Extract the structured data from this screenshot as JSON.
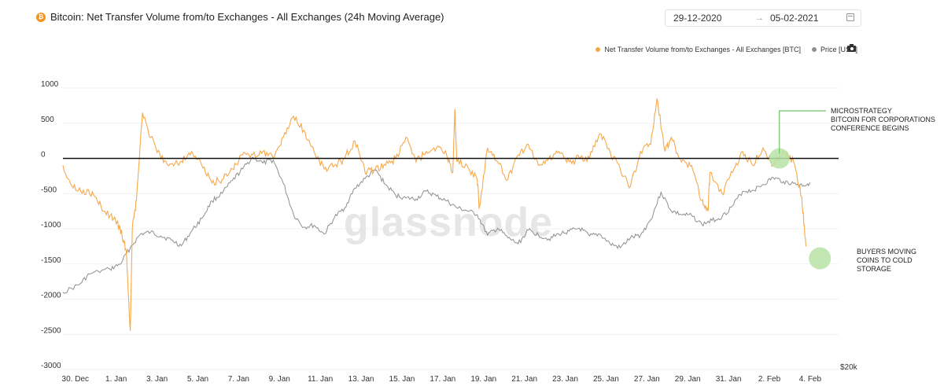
{
  "header": {
    "icon_glyph": "₿",
    "title": "Bitcoin: Net Transfer Volume from/to Exchanges - All Exchanges (24h Moving Average)"
  },
  "date_range": {
    "start": "29-12-2020",
    "arrow": "→",
    "end": "05-02-2021",
    "icon": "calendar-icon"
  },
  "legend": {
    "net_transfer_label": "Net Transfer Volume from/to Exchanges - All Exchanges [BTC]",
    "price_label": "Price [USD]",
    "camera_icon": "camera-icon"
  },
  "watermark": "glassnode",
  "colors": {
    "net_transfer": "#f7a84a",
    "price": "#8f8f8f",
    "zero_line": "#111111",
    "annotation_line": "#6cc46a",
    "annotation_fill": "#b7e3a6"
  },
  "chart_data": {
    "type": "line",
    "x_tick_labels": [
      "30. Dec",
      "1. Jan",
      "3. Jan",
      "5. Jan",
      "7. Jan",
      "9. Jan",
      "11. Jan",
      "13. Jan",
      "15. Jan",
      "17. Jan",
      "19. Jan",
      "21. Jan",
      "23. Jan",
      "25. Jan",
      "27. Jan",
      "29. Jan",
      "31. Jan",
      "2. Feb",
      "4. Feb"
    ],
    "x_range_days": [
      -0.3,
      37.7
    ],
    "y_left": {
      "ticks": [
        1000,
        500,
        0,
        -500,
        -1000,
        -1500,
        -2000,
        -2500,
        -3000
      ],
      "ylim": [
        -3000,
        1000
      ]
    },
    "y_right": {
      "tick_label": "$20k"
    },
    "series": [
      {
        "name": "Net Transfer Volume from/to Exchanges - All Exchanges [BTC]",
        "axis": "left",
        "x": [
          -0.3,
          0.2,
          0.7,
          1.2,
          1.7,
          2.2,
          2.5,
          2.6,
          2.8,
          3.0,
          3.1,
          3.3,
          3.6,
          4.0,
          4.5,
          5.0,
          5.5,
          6.0,
          6.5,
          7.0,
          7.5,
          8.0,
          8.5,
          9.0,
          9.5,
          10.0,
          10.5,
          11.0,
          11.5,
          12.0,
          12.5,
          13.0,
          13.5,
          14.0,
          14.5,
          15.0,
          15.5,
          16.0,
          16.5,
          17.0,
          17.5,
          18.0,
          18.5,
          18.8,
          18.9,
          19.0,
          19.5,
          20.0,
          20.1,
          20.5,
          21.0,
          21.5,
          22.0,
          22.5,
          23.0,
          23.5,
          24.0,
          24.5,
          25.0,
          25.5,
          26.0,
          26.5,
          27.0,
          27.5,
          28.0,
          28.5,
          28.8,
          29.2,
          29.5,
          30.0,
          30.5,
          31.0,
          31.3,
          31.4,
          32.0,
          32.5,
          33.0,
          33.5,
          34.0,
          34.5,
          35.0,
          35.5,
          35.9,
          36.1
        ],
        "y": [
          -100,
          -420,
          -450,
          -520,
          -750,
          -850,
          -1000,
          -1100,
          -1300,
          -2450,
          -1000,
          -600,
          650,
          300,
          0,
          -80,
          -40,
          100,
          -100,
          -350,
          -300,
          -150,
          50,
          50,
          100,
          0,
          300,
          600,
          400,
          100,
          -150,
          -100,
          0,
          250,
          -200,
          -150,
          -100,
          0,
          300,
          -50,
          100,
          150,
          50,
          -200,
          700,
          -50,
          -100,
          -300,
          -700,
          150,
          -50,
          -300,
          50,
          200,
          -100,
          0,
          100,
          -50,
          0,
          0,
          350,
          100,
          -150,
          -400,
          100,
          200,
          850,
          100,
          300,
          -50,
          -100,
          -600,
          -750,
          -200,
          -500,
          -200,
          100,
          -100,
          150,
          -100,
          100,
          -50,
          -550,
          -1250
        ]
      },
      {
        "name": "Price [USD]",
        "axis": "right",
        "x": [
          -0.3,
          0.5,
          1.0,
          2.0,
          2.5,
          3.0,
          3.5,
          4.0,
          4.5,
          5.0,
          5.5,
          6.0,
          6.5,
          7.0,
          7.5,
          8.0,
          8.5,
          9.0,
          9.5,
          10.0,
          10.5,
          11.0,
          11.5,
          12.0,
          12.5,
          13.0,
          13.5,
          14.0,
          14.5,
          15.0,
          15.5,
          16.0,
          16.5,
          17.0,
          17.5,
          18.0,
          18.5,
          19.0,
          19.5,
          20.0,
          20.5,
          21.0,
          21.5,
          22.0,
          22.5,
          23.0,
          23.5,
          24.0,
          24.5,
          25.0,
          25.5,
          26.0,
          26.5,
          27.0,
          27.5,
          28.0,
          28.5,
          29.0,
          29.5,
          30.0,
          30.5,
          31.0,
          31.5,
          32.0,
          32.5,
          33.0,
          33.5,
          34.0,
          34.5,
          35.0,
          35.5,
          36.0,
          36.3
        ],
        "y": [
          26800,
          27600,
          28700,
          29200,
          29700,
          31400,
          32800,
          33000,
          32600,
          32200,
          31600,
          33100,
          34400,
          36200,
          37000,
          38300,
          39500,
          40700,
          40100,
          40400,
          38000,
          34800,
          33500,
          33700,
          32800,
          34500,
          35500,
          37500,
          38500,
          39400,
          37900,
          36800,
          36500,
          36400,
          37200,
          36700,
          36200,
          35500,
          35200,
          34800,
          32700,
          33400,
          32400,
          31800,
          33200,
          32700,
          32300,
          32800,
          33100,
          33400,
          32600,
          32800,
          31800,
          31400,
          32400,
          32700,
          34300,
          37100,
          35200,
          34800,
          34700,
          33800,
          34200,
          34600,
          35700,
          37200,
          37300,
          37900,
          38600,
          38200,
          38000,
          37800,
          38100
        ]
      }
    ],
    "annotations": [
      {
        "text_lines": [
          "MICROSTRATEGY",
          "BITCOIN FOR CORPORATIONS",
          "CONFERENCE BEGINS"
        ],
        "x": 34.8,
        "y": 0
      },
      {
        "text_lines": [
          "BUYERS MOVING",
          "COINS TO COLD",
          "STORAGE"
        ],
        "x": 36.9,
        "y": -1420
      }
    ]
  }
}
